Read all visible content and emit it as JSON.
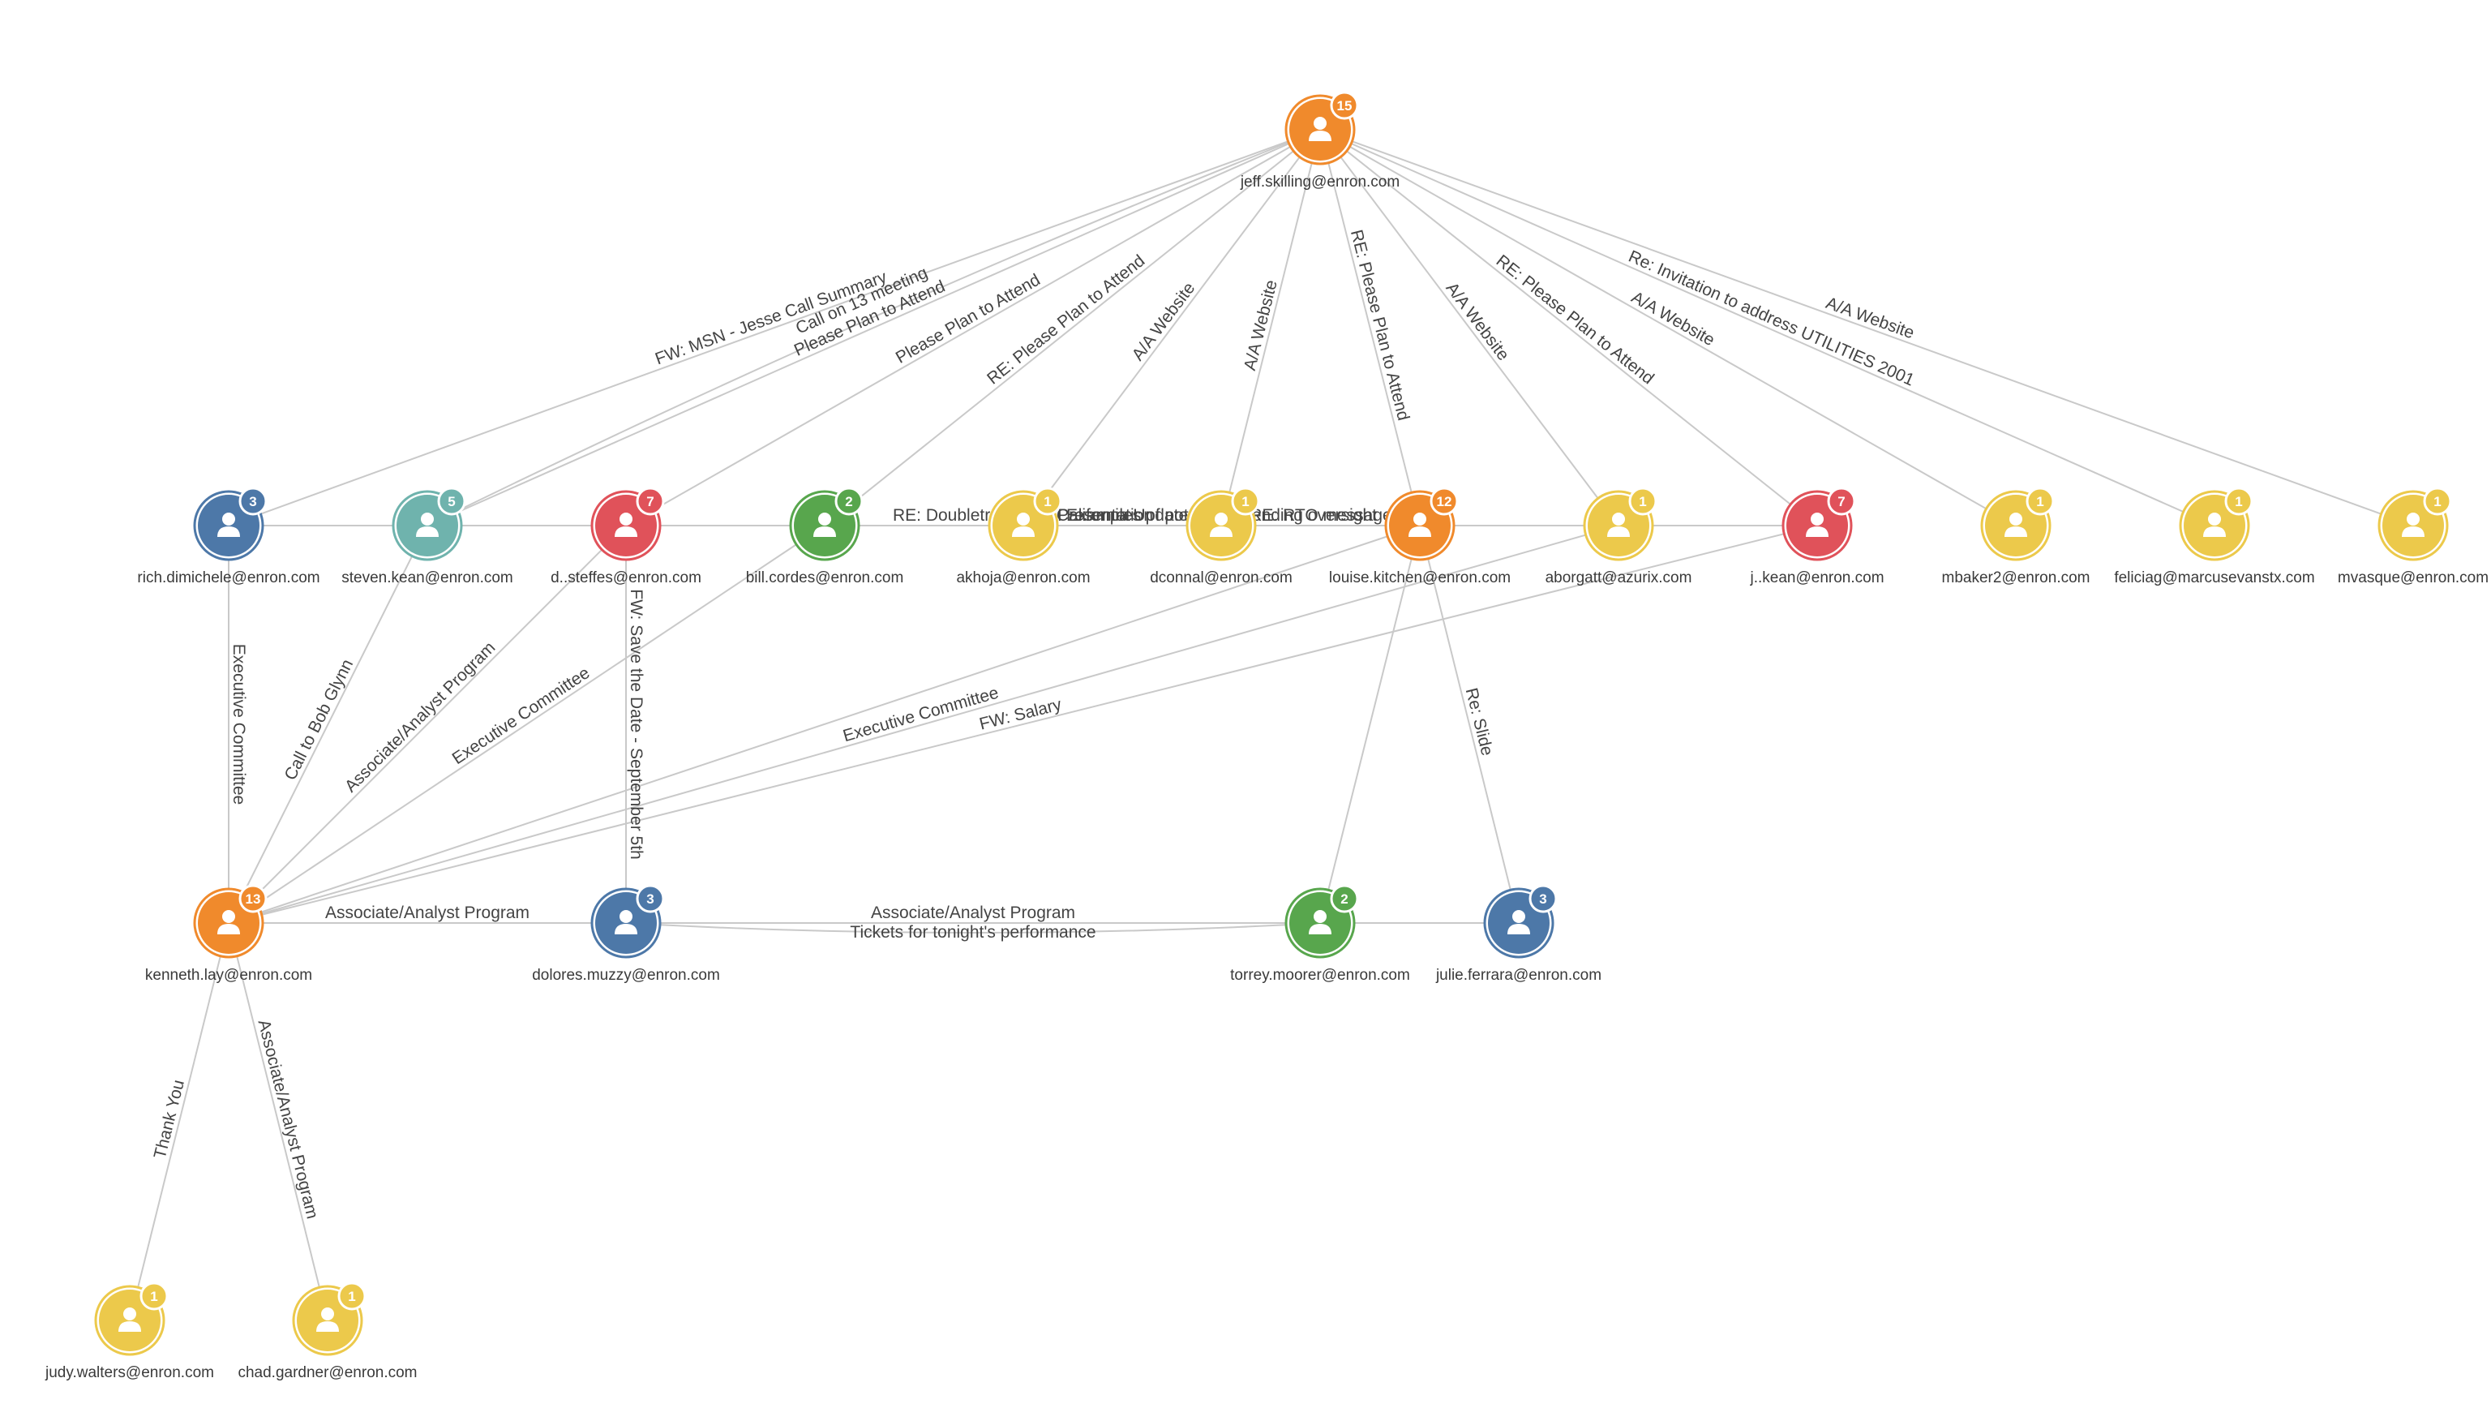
{
  "colors": {
    "orange": "#f08a2c",
    "blue": "#4d78a8",
    "teal": "#6fb3ad",
    "red": "#e0525a",
    "green": "#58a64d",
    "yellow": "#ecc94b",
    "edge": "#c9c9c9"
  },
  "nodes": [
    {
      "id": "jeff",
      "label": "jeff.skilling@enron.com",
      "count": "15",
      "color": "orange",
      "icon": "person-icon"
    },
    {
      "id": "rich",
      "label": "rich.dimichele@enron.com",
      "count": "3",
      "color": "blue",
      "icon": "person-icon"
    },
    {
      "id": "steven",
      "label": "steven.kean@enron.com",
      "count": "5",
      "color": "teal",
      "icon": "person-icon"
    },
    {
      "id": "dsteffes",
      "label": "d..steffes@enron.com",
      "count": "7",
      "color": "red",
      "icon": "person-icon"
    },
    {
      "id": "bill",
      "label": "bill.cordes@enron.com",
      "count": "2",
      "color": "green",
      "icon": "person-icon"
    },
    {
      "id": "akhoja",
      "label": "akhoja@enron.com",
      "count": "1",
      "color": "yellow",
      "icon": "person-icon"
    },
    {
      "id": "dconnal",
      "label": "dconnal@enron.com",
      "count": "1",
      "color": "yellow",
      "icon": "person-icon"
    },
    {
      "id": "louise",
      "label": "louise.kitchen@enron.com",
      "count": "12",
      "color": "orange",
      "icon": "person-icon"
    },
    {
      "id": "aborgatt",
      "label": "aborgatt@azurix.com",
      "count": "1",
      "color": "yellow",
      "icon": "person-icon"
    },
    {
      "id": "jkean",
      "label": "j..kean@enron.com",
      "count": "7",
      "color": "red",
      "icon": "person-icon"
    },
    {
      "id": "mbaker2",
      "label": "mbaker2@enron.com",
      "count": "1",
      "color": "yellow",
      "icon": "person-icon"
    },
    {
      "id": "feliciag",
      "label": "feliciag@marcusevanstx.com",
      "count": "1",
      "color": "yellow",
      "icon": "person-icon"
    },
    {
      "id": "mvasque",
      "label": "mvasque@enron.com",
      "count": "1",
      "color": "yellow",
      "icon": "person-icon"
    },
    {
      "id": "kenneth",
      "label": "kenneth.lay@enron.com",
      "count": "13",
      "color": "orange",
      "icon": "person-icon"
    },
    {
      "id": "dolores",
      "label": "dolores.muzzy@enron.com",
      "count": "3",
      "color": "blue",
      "icon": "person-icon"
    },
    {
      "id": "torrey",
      "label": "torrey.moorer@enron.com",
      "count": "2",
      "color": "green",
      "icon": "person-icon"
    },
    {
      "id": "julie",
      "label": "julie.ferrara@enron.com",
      "count": "3",
      "color": "blue",
      "icon": "person-icon"
    },
    {
      "id": "judy",
      "label": "judy.walters@enron.com",
      "count": "1",
      "color": "yellow",
      "icon": "person-icon"
    },
    {
      "id": "chad",
      "label": "chad.gardner@enron.com",
      "count": "1",
      "color": "yellow",
      "icon": "person-icon"
    }
  ],
  "edges": [
    {
      "from": "jeff",
      "to": "rich",
      "label": "FW: MSN - Jesse Call Summary"
    },
    {
      "from": "jeff",
      "to": "steven",
      "label": "Please Plan to Attend"
    },
    {
      "from": "jeff",
      "to": "steven",
      "label": "Call on 13 meeting"
    },
    {
      "from": "jeff",
      "to": "dsteffes",
      "label": "Please Plan to Attend"
    },
    {
      "from": "jeff",
      "to": "bill",
      "label": "RE: Please Plan to Attend"
    },
    {
      "from": "jeff",
      "to": "akhoja",
      "label": "A/A Website"
    },
    {
      "from": "jeff",
      "to": "dconnal",
      "label": "A/A Website"
    },
    {
      "from": "jeff",
      "to": "louise",
      "label": "RE: Please Plan to Attend"
    },
    {
      "from": "jeff",
      "to": "aborgatt",
      "label": "A/A Website"
    },
    {
      "from": "jeff",
      "to": "jkean",
      "label": "RE: Please Plan to Attend"
    },
    {
      "from": "jeff",
      "to": "mbaker2",
      "label": "A/A Website"
    },
    {
      "from": "jeff",
      "to": "feliciag",
      "label": "Re: Invitation to address UTILITIES 2001"
    },
    {
      "from": "jeff",
      "to": "mvasque",
      "label": "A/A Website"
    },
    {
      "from": "rich",
      "to": "kenneth",
      "label": "Executive Committee"
    },
    {
      "from": "steven",
      "to": "kenneth",
      "label": "Call to Bob Glynn"
    },
    {
      "from": "dsteffes",
      "to": "kenneth",
      "label": "Associate/Analyst Program"
    },
    {
      "from": "bill",
      "to": "kenneth",
      "label": "Executive Committee"
    },
    {
      "from": "dsteffes",
      "to": "dolores",
      "label": "FW: Save the Date - September 5th"
    },
    {
      "from": "aborgatt",
      "to": "kenneth",
      "label": "Executive Committee"
    },
    {
      "from": "jkean",
      "to": "kenneth",
      "label": "FW: Salary"
    },
    {
      "from": "louise",
      "to": "kenneth",
      "label": ""
    },
    {
      "from": "kenneth",
      "to": "dolores",
      "label": "Associate/Analyst Program"
    },
    {
      "from": "dolores",
      "to": "torrey",
      "label": "Associate/Analyst Program"
    },
    {
      "from": "dolores",
      "to": "torrey",
      "label": "Tickets for tonight's performance"
    },
    {
      "from": "torrey",
      "to": "julie",
      "label": ""
    },
    {
      "from": "louise",
      "to": "torrey",
      "label": ""
    },
    {
      "from": "louise",
      "to": "julie",
      "label": "Re: Slide"
    },
    {
      "from": "kenneth",
      "to": "judy",
      "label": "Thank You"
    },
    {
      "from": "kenneth",
      "to": "chad",
      "label": "Associate/Analyst Program"
    },
    {
      "from": "steven",
      "to": "jkean",
      "label": "California Update"
    },
    {
      "from": "dsteffes",
      "to": "louise",
      "label": "RE: Doubletree Point Presentation"
    },
    {
      "from": "dsteffes",
      "to": "jkean",
      "label": "Examples of potential/spending oversight"
    },
    {
      "from": "bill",
      "to": "jkean",
      "label": "RE: RTO message"
    },
    {
      "from": "rich",
      "to": "aborgatt",
      "label": ""
    },
    {
      "from": "steven",
      "to": "louise",
      "label": ""
    },
    {
      "from": "dsteffes",
      "to": "aborgatt",
      "label": ""
    },
    {
      "from": "bill",
      "to": "louise",
      "label": ""
    },
    {
      "from": "dsteffes",
      "to": "bill",
      "label": ""
    },
    {
      "from": "steven",
      "to": "bill",
      "label": ""
    },
    {
      "from": "dconnal",
      "to": "jkean",
      "label": ""
    }
  ]
}
